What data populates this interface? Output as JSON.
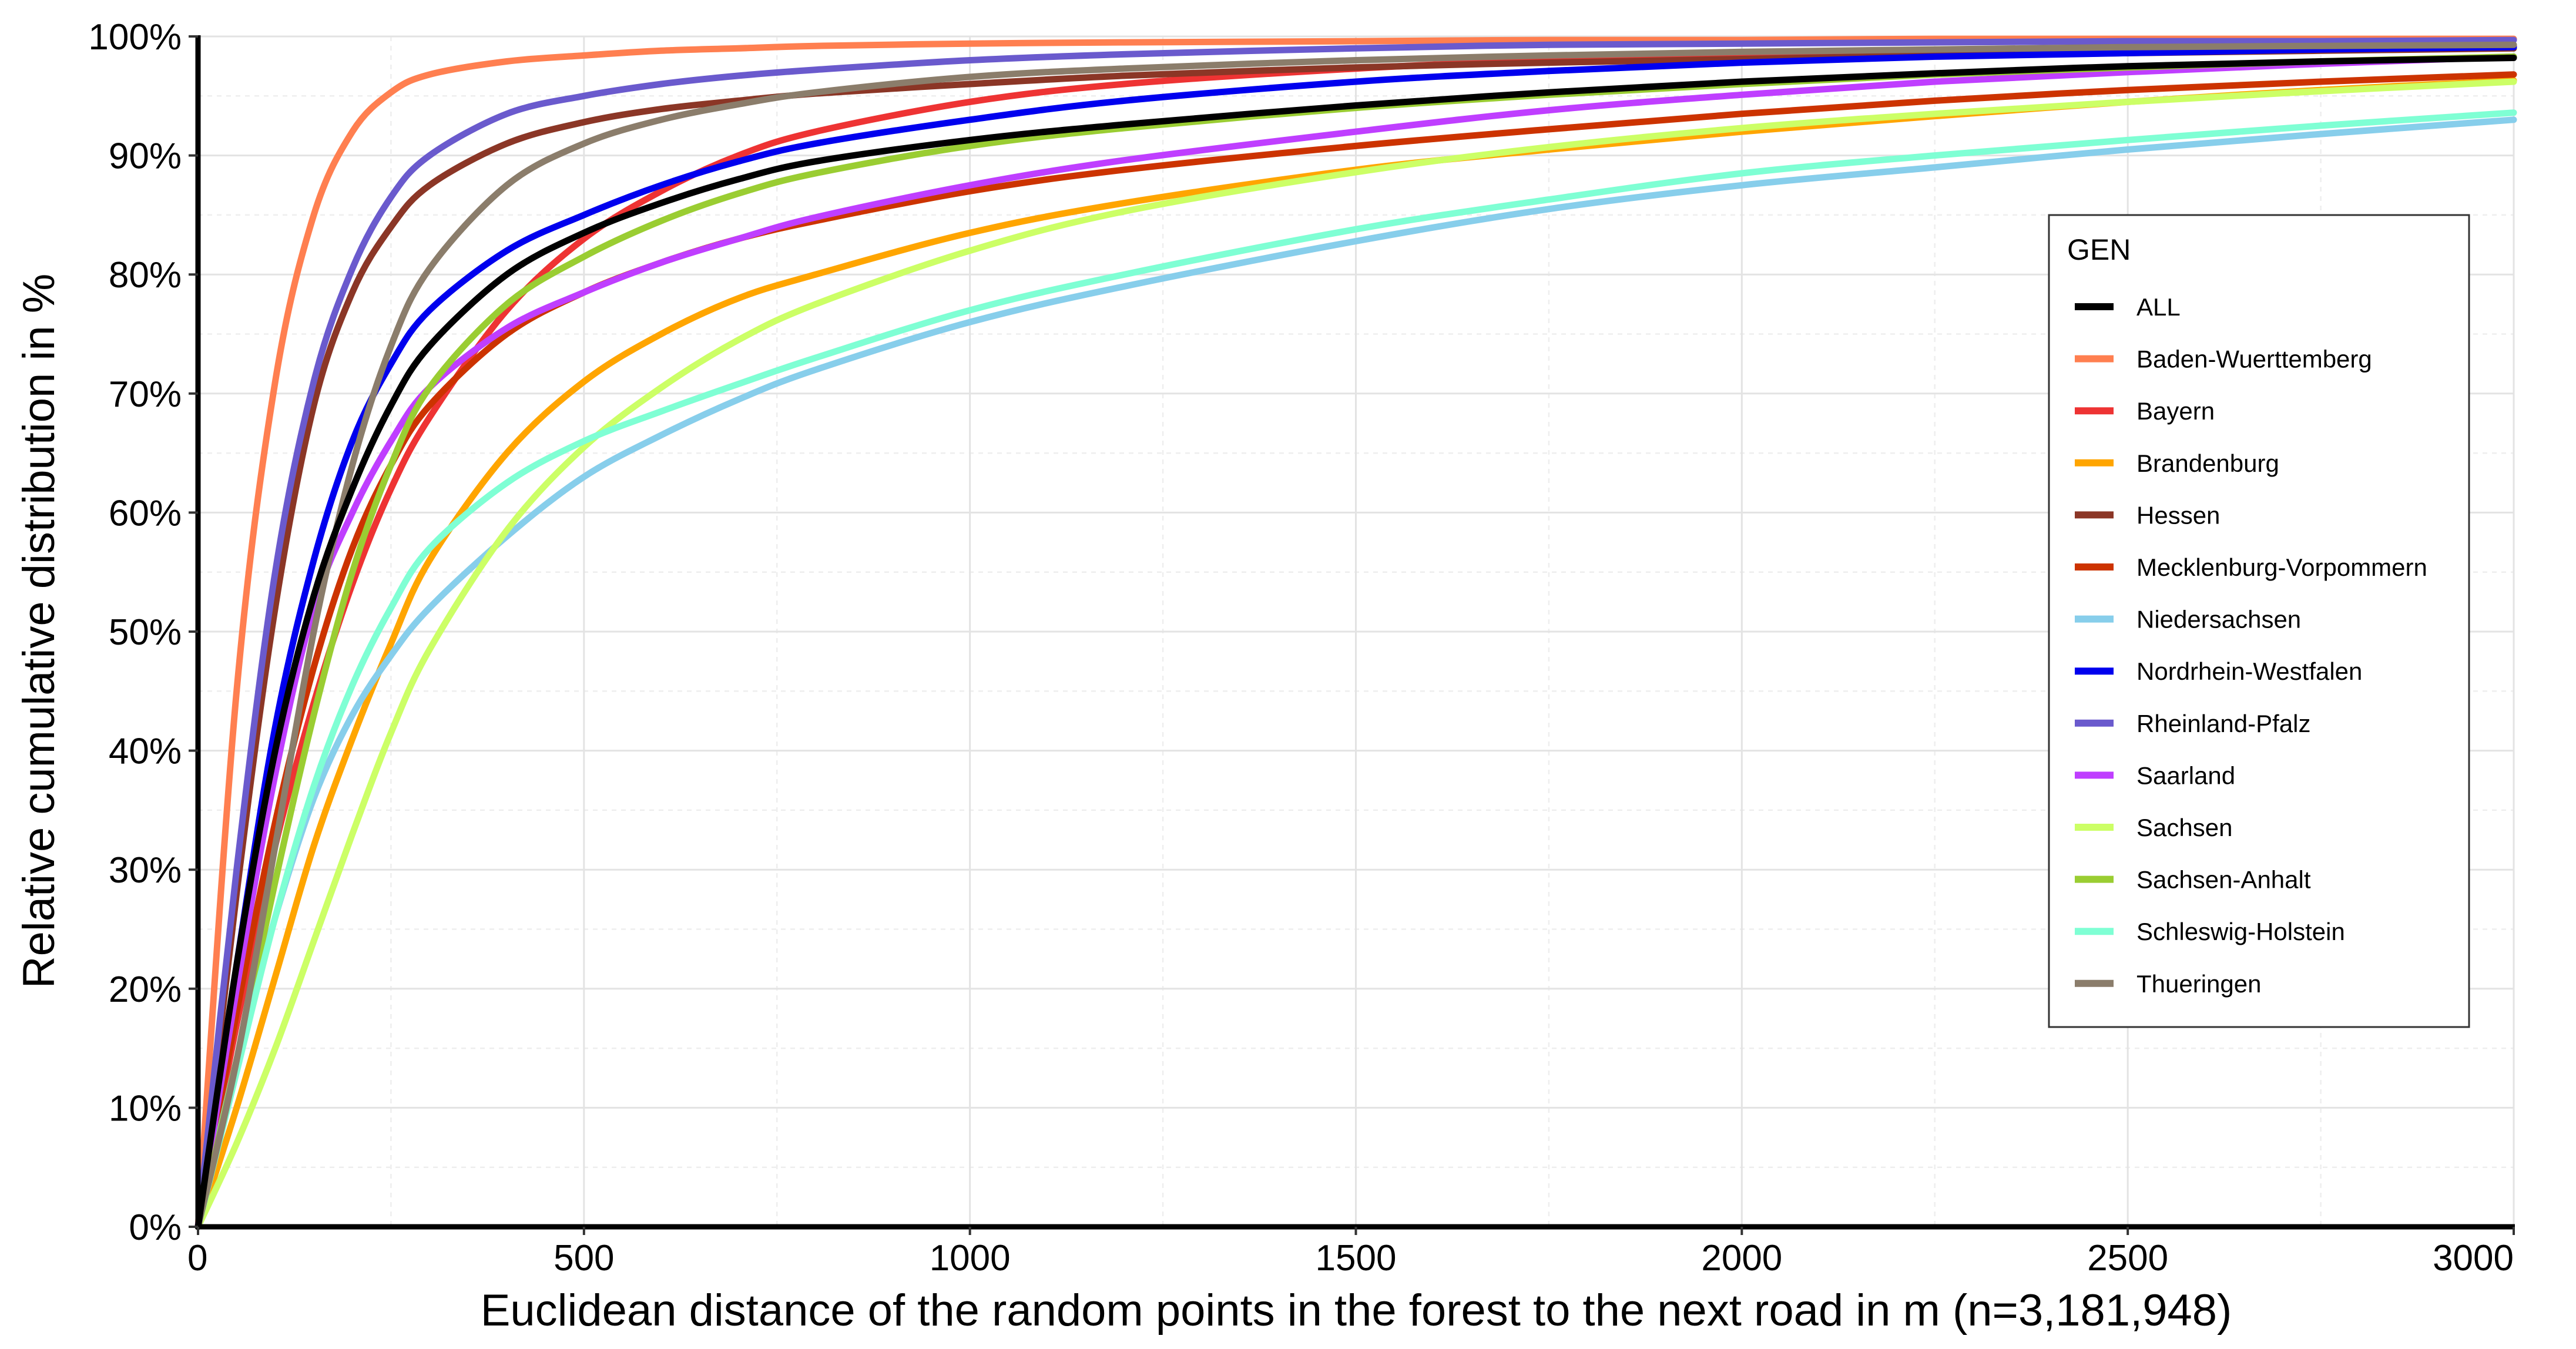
{
  "chart_data": {
    "type": "line",
    "title": "",
    "xlabel": "Euclidean distance of the random points in the forest to the next road in m (n=3,181,948)",
    "ylabel": "Relative cumulative distribution in %",
    "xlim": [
      0,
      3000
    ],
    "ylim": [
      0,
      100
    ],
    "x_ticks": [
      "0",
      "500",
      "1000",
      "1500",
      "2000",
      "2500",
      "3000"
    ],
    "y_ticks": [
      "0%",
      "10%",
      "20%",
      "30%",
      "40%",
      "50%",
      "60%",
      "70%",
      "80%",
      "90%",
      "100%"
    ],
    "grid": true,
    "legend": {
      "title": "GEN",
      "position": "right"
    },
    "x": [
      0,
      50,
      100,
      150,
      200,
      250,
      300,
      400,
      500,
      600,
      700,
      800,
      1000,
      1200,
      1500,
      1750,
      2000,
      2250,
      2500,
      2750,
      3000
    ],
    "series": [
      {
        "name": "ALL",
        "color": "#000000",
        "values": [
          0,
          22,
          40,
          53,
          62,
          69,
          74,
          80,
          83.5,
          86,
          88,
          89.5,
          91.3,
          92.6,
          94.2,
          95.3,
          96.2,
          96.9,
          97.5,
          97.9,
          98.2
        ]
      },
      {
        "name": "Baden-Wuerttemberg",
        "color": "#ff7f50",
        "values": [
          0,
          45,
          71,
          85,
          92,
          95.3,
          96.8,
          97.9,
          98.4,
          98.8,
          99,
          99.2,
          99.4,
          99.5,
          99.6,
          99.7,
          99.7,
          99.8,
          99.8,
          99.8,
          99.8
        ]
      },
      {
        "name": "Bayern",
        "color": "#ee3333",
        "values": [
          0,
          17,
          32,
          44,
          54,
          62,
          68,
          77,
          83,
          87,
          90,
          92,
          94.5,
          96,
          97.3,
          98,
          98.4,
          98.7,
          98.9,
          99.1,
          99.2
        ]
      },
      {
        "name": "Brandenburg",
        "color": "#ffa500",
        "values": [
          0,
          10,
          21,
          32,
          41,
          49,
          56,
          65,
          71,
          75,
          78,
          80,
          83.5,
          86,
          88.8,
          90.5,
          92,
          93.3,
          94.5,
          95.5,
          96.3
        ]
      },
      {
        "name": "Hessen",
        "color": "#8b3626",
        "values": [
          0,
          28,
          52,
          69,
          78.5,
          84,
          87.5,
          91,
          92.8,
          93.9,
          94.6,
          95.2,
          96,
          96.7,
          97.4,
          97.8,
          98.1,
          98.4,
          98.6,
          98.8,
          99
        ]
      },
      {
        "name": "Mecklenburg-Vorpommern",
        "color": "#cc3300",
        "values": [
          0,
          18,
          34,
          47,
          57,
          64,
          69,
          75,
          78.5,
          81,
          83,
          84.5,
          87,
          88.8,
          90.8,
          92.2,
          93.5,
          94.6,
          95.5,
          96.2,
          96.8
        ]
      },
      {
        "name": "Niedersachsen",
        "color": "#87ceeb",
        "values": [
          0,
          14,
          26,
          36,
          43,
          48,
          52,
          58,
          63,
          66.5,
          69.5,
          72,
          76,
          79,
          82.8,
          85.5,
          87.5,
          89,
          90.5,
          91.8,
          93
        ]
      },
      {
        "name": "Nordrhein-Westfalen",
        "color": "#0000ee",
        "values": [
          0,
          22,
          42,
          56,
          66,
          72.5,
          77,
          82,
          85,
          87.5,
          89.5,
          91,
          93,
          94.6,
          96.2,
          97.1,
          97.8,
          98.3,
          98.6,
          98.9,
          99.1
        ]
      },
      {
        "name": "Rheinland-Pfalz",
        "color": "#6a5acd",
        "values": [
          0,
          30,
          55,
          71,
          80.5,
          86.5,
          90,
          93.5,
          95,
          96,
          96.7,
          97.2,
          98,
          98.5,
          99,
          99.3,
          99.4,
          99.5,
          99.6,
          99.6,
          99.7
        ]
      },
      {
        "name": "Saarland",
        "color": "#bf3eff",
        "values": [
          0,
          20,
          38,
          52,
          60,
          66,
          70.5,
          75.5,
          78.5,
          81,
          83,
          84.8,
          87.5,
          89.6,
          92,
          93.8,
          95.1,
          96.2,
          97,
          97.7,
          98.3
        ]
      },
      {
        "name": "Sachsen",
        "color": "#ccff66",
        "values": [
          0,
          7,
          15,
          24,
          33,
          41.5,
          48.5,
          58.5,
          65.5,
          70.5,
          74.5,
          77.5,
          82,
          85.3,
          88.6,
          90.7,
          92.3,
          93.5,
          94.5,
          95.4,
          96.2
        ]
      },
      {
        "name": "Sachsen-Anhalt",
        "color": "#9acd32",
        "values": [
          0,
          14,
          29,
          43,
          55,
          64,
          70.5,
          77.5,
          81.5,
          84.5,
          86.8,
          88.5,
          90.8,
          92.3,
          94,
          95.1,
          96,
          96.8,
          97.4,
          97.9,
          98.3
        ]
      },
      {
        "name": "Schleswig-Holstein",
        "color": "#7fffd4",
        "values": [
          0,
          13,
          26,
          37,
          45.5,
          52,
          57,
          62.5,
          66,
          68.5,
          70.8,
          73,
          77,
          80,
          83.8,
          86.3,
          88.5,
          90,
          91.3,
          92.5,
          93.6
        ]
      },
      {
        "name": "Thueringen",
        "color": "#8b7d6b",
        "values": [
          0,
          14,
          32,
          50,
          64,
          74,
          80.5,
          87.5,
          91,
          93,
          94.3,
          95.3,
          96.6,
          97.3,
          98,
          98.4,
          98.7,
          98.9,
          99.1,
          99.2,
          99.3
        ]
      }
    ]
  }
}
